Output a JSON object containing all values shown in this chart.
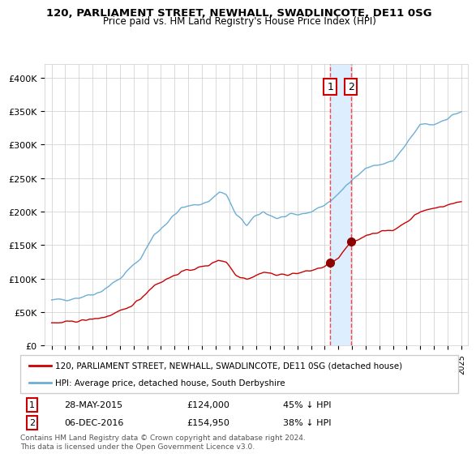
{
  "title": "120, PARLIAMENT STREET, NEWHALL, SWADLINCOTE, DE11 0SG",
  "subtitle": "Price paid vs. HM Land Registry's House Price Index (HPI)",
  "legend_line1": "120, PARLIAMENT STREET, NEWHALL, SWADLINCOTE, DE11 0SG (detached house)",
  "legend_line2": "HPI: Average price, detached house, South Derbyshire",
  "transaction1_label": "1",
  "transaction1_date": "28-MAY-2015",
  "transaction1_price": "£124,000",
  "transaction1_pct": "45% ↓ HPI",
  "transaction2_label": "2",
  "transaction2_date": "06-DEC-2016",
  "transaction2_price": "£154,950",
  "transaction2_pct": "38% ↓ HPI",
  "footnote": "Contains HM Land Registry data © Crown copyright and database right 2024.\nThis data is licensed under the Open Government Licence v3.0.",
  "hpi_color": "#6baed6",
  "price_color": "#cc0000",
  "marker_color": "#8b0000",
  "grid_color": "#cccccc",
  "background_color": "#ffffff",
  "plot_bg_color": "#ffffff",
  "highlight_color": "#ddeeff",
  "vline_color": "#ff4444",
  "ylim": [
    0,
    420000
  ],
  "yticks": [
    0,
    50000,
    100000,
    150000,
    200000,
    250000,
    300000,
    350000,
    400000
  ],
  "ytick_labels": [
    "£0",
    "£50K",
    "£100K",
    "£150K",
    "£200K",
    "£250K",
    "£300K",
    "£350K",
    "£400K"
  ],
  "start_year": 1995,
  "end_year": 2025,
  "transaction1_x": 2015.4,
  "transaction2_x": 2016.92
}
